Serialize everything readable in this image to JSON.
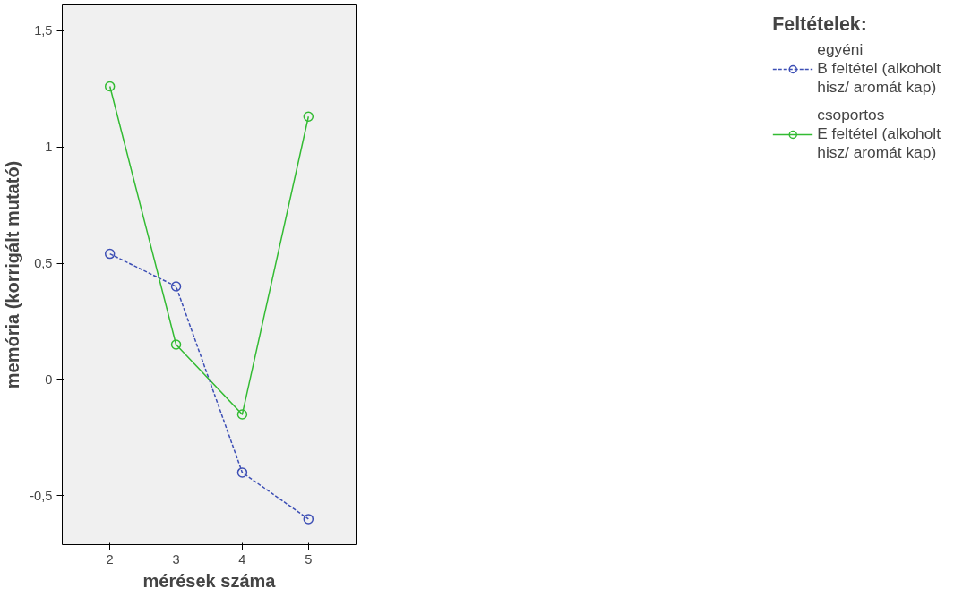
{
  "chart_data": {
    "type": "line",
    "xlabel": "mérések száma",
    "ylabel": "memória (korrigált mutató)",
    "legend_title": "Feltételek:",
    "x": [
      2,
      3,
      4,
      5
    ],
    "series": [
      {
        "name": "egyéni\nB feltétel (alkoholt\nhisz/ aromát kap)",
        "color": "#3d4fb5",
        "line_style": "dashed",
        "values": [
          0.54,
          0.4,
          -0.4,
          -0.6
        ]
      },
      {
        "name": "csoportos\nE feltétel (alkoholt\nhisz/ aromát kap)",
        "color": "#33bb33",
        "line_style": "solid",
        "values": [
          1.26,
          0.15,
          -0.15,
          1.13
        ]
      }
    ],
    "marker": "circle",
    "grid": false,
    "legend": "right",
    "xlim": [
      1.28,
      5.72
    ],
    "xticks": [
      2,
      3,
      4,
      5
    ],
    "ylim": [
      -0.71,
      1.61
    ],
    "yticks": [
      {
        "value": -0.5,
        "label": "-0,5"
      },
      0,
      {
        "value": 0.5,
        "label": "0,5"
      },
      1,
      {
        "value": 1.5,
        "label": "1,5"
      }
    ]
  }
}
